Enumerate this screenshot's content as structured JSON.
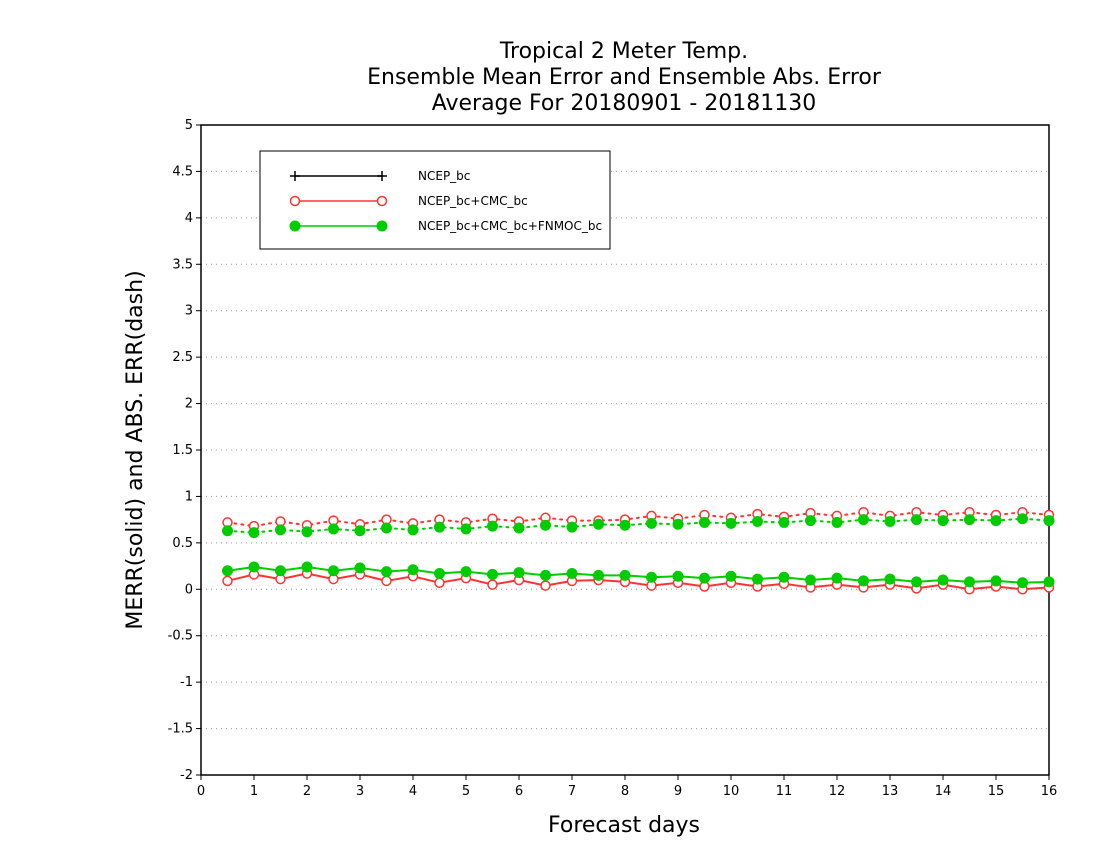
{
  "chart_data": {
    "type": "line",
    "title": [
      "Tropical 2 Meter Temp.",
      "Ensemble Mean Error and Ensemble Abs. Error",
      "Average For 20180901 - 20181130"
    ],
    "xlabel": "Forecast days",
    "ylabel": "MERR(solid) and ABS. ERR(dash)",
    "xlim": [
      0,
      16
    ],
    "ylim": [
      -2,
      5
    ],
    "xticks": [
      "0",
      "1",
      "2",
      "3",
      "4",
      "5",
      "6",
      "7",
      "8",
      "9",
      "10",
      "11",
      "12",
      "13",
      "14",
      "15",
      "16"
    ],
    "yticks": [
      "5",
      "4.5",
      "4",
      "3.5",
      "3",
      "2.5",
      "2",
      "1.5",
      "1",
      "0.5",
      "0",
      "-0.5",
      "-1",
      "-1.5",
      "-2"
    ],
    "grid": true,
    "legend_position": "top-left",
    "x": [
      0.5,
      1,
      1.5,
      2,
      2.5,
      3,
      3.5,
      4,
      4.5,
      5,
      5.5,
      6,
      6.5,
      7,
      7.5,
      8,
      8.5,
      9,
      9.5,
      10,
      10.5,
      11,
      11.5,
      12,
      12.5,
      13,
      13.5,
      14,
      14.5,
      15,
      15.5,
      16
    ],
    "series": [
      {
        "name": "NCEP_bc",
        "color": "#000000",
        "marker": "plus",
        "merr": [],
        "abs_err": []
      },
      {
        "name": "NCEP_bc+CMC_bc",
        "color": "#ff3333",
        "marker": "open-circle",
        "merr": [
          0.09,
          0.16,
          0.11,
          0.17,
          0.11,
          0.16,
          0.09,
          0.14,
          0.07,
          0.12,
          0.05,
          0.1,
          0.04,
          0.09,
          0.1,
          0.08,
          0.04,
          0.07,
          0.03,
          0.07,
          0.03,
          0.06,
          0.02,
          0.05,
          0.02,
          0.05,
          0.01,
          0.05,
          0.0,
          0.03,
          0.0,
          0.02
        ],
        "abs_err": [
          0.72,
          0.68,
          0.73,
          0.69,
          0.74,
          0.7,
          0.75,
          0.71,
          0.75,
          0.72,
          0.76,
          0.73,
          0.77,
          0.74,
          0.74,
          0.75,
          0.79,
          0.76,
          0.8,
          0.77,
          0.81,
          0.78,
          0.82,
          0.79,
          0.83,
          0.79,
          0.83,
          0.8,
          0.83,
          0.8,
          0.83,
          0.8
        ]
      },
      {
        "name": "NCEP_bc+CMC_bc+FNMOC_bc",
        "color": "#00cc00",
        "marker": "filled-circle",
        "merr": [
          0.2,
          0.24,
          0.2,
          0.24,
          0.2,
          0.23,
          0.19,
          0.21,
          0.17,
          0.19,
          0.16,
          0.18,
          0.15,
          0.17,
          0.15,
          0.15,
          0.13,
          0.14,
          0.12,
          0.14,
          0.11,
          0.13,
          0.1,
          0.12,
          0.09,
          0.11,
          0.08,
          0.1,
          0.08,
          0.09,
          0.07,
          0.08
        ],
        "abs_err": [
          0.63,
          0.61,
          0.64,
          0.62,
          0.65,
          0.63,
          0.66,
          0.64,
          0.67,
          0.65,
          0.68,
          0.66,
          0.69,
          0.67,
          0.7,
          0.69,
          0.71,
          0.7,
          0.72,
          0.71,
          0.73,
          0.72,
          0.74,
          0.72,
          0.75,
          0.73,
          0.75,
          0.74,
          0.75,
          0.74,
          0.76,
          0.74
        ]
      }
    ]
  }
}
